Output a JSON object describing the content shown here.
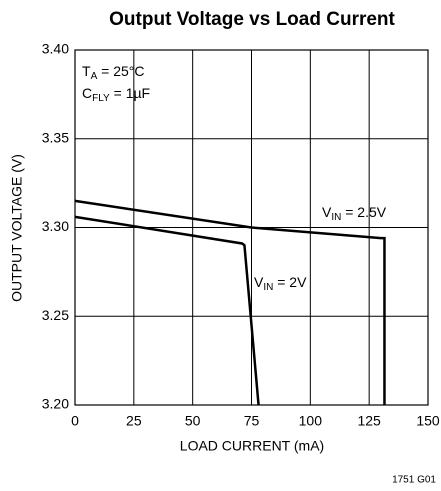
{
  "chart_data": {
    "type": "line",
    "title": "Output Voltage vs Load Current",
    "xlabel": "LOAD CURRENT (mA)",
    "ylabel": "OUTPUT VOLTAGE (V)",
    "xlim": [
      0,
      150
    ],
    "xticks": [
      0,
      25,
      50,
      75,
      100,
      125,
      150
    ],
    "ylim": [
      3.2,
      3.4
    ],
    "yticks": [
      {
        "value": 3.2,
        "label": "3.20"
      },
      3.25,
      {
        "value": 3.3,
        "label": "3.30"
      },
      3.35,
      {
        "value": 3.4,
        "label": "3.40"
      }
    ],
    "grid": true,
    "series": [
      {
        "name": "2.5V",
        "color": "#000000",
        "x": [
          0,
          75,
          130,
          131.5,
          131.5
        ],
        "values": [
          3.315,
          3.3,
          3.294,
          3.294,
          3.2
        ]
      },
      {
        "name": "2V",
        "color": "#000000",
        "x": [
          0,
          71,
          72,
          78
        ],
        "values": [
          3.306,
          3.291,
          3.29,
          3.2
        ]
      }
    ],
    "annotations": [
      {
        "main": "T",
        "sub": "A",
        "rest": " = 25°C"
      },
      {
        "main": "C",
        "sub": "FLY",
        "rest": " = 1µF"
      },
      {
        "main": "V",
        "sub": "IN",
        "rest": " = 2.5V"
      },
      {
        "main": "V",
        "sub": "IN",
        "rest": " = 2V"
      }
    ],
    "footnote": "1751 G01"
  }
}
